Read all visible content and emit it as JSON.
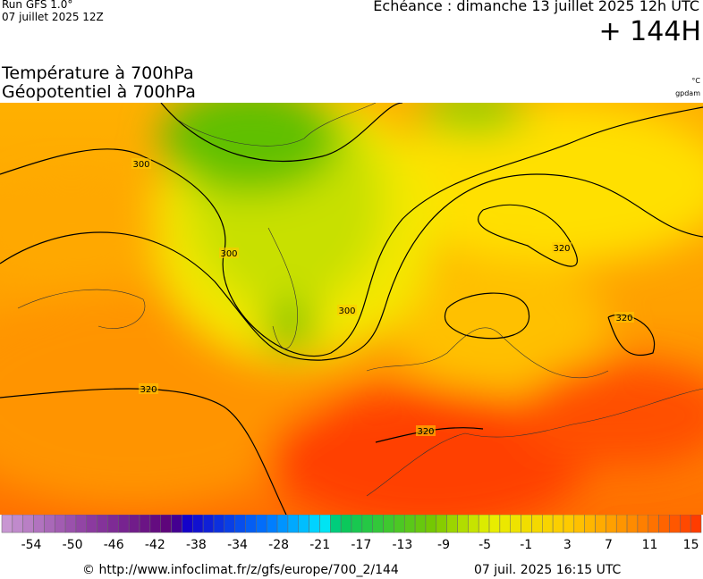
{
  "header": {
    "run": "Run GFS 1.0°",
    "init": "07 juillet 2025 12Z",
    "valid": "Echéance : dimanche 13 juillet 2025 12h UTC",
    "lead": "+ 144H"
  },
  "titles": {
    "line1": "Température à 700hPa",
    "line2": "Géopotentiel à 700hPa",
    "unit1": "°C",
    "unit2": "gpdam"
  },
  "contour_labels": [
    "300",
    "300",
    "300",
    "320",
    "320",
    "320",
    "320"
  ],
  "colorbar": {
    "ticks": [
      "-54",
      "-50",
      "-46",
      "-42",
      "-38",
      "-34",
      "-28",
      "-21",
      "-17",
      "-13",
      "-9",
      "-5",
      "-1",
      "3",
      "7",
      "11",
      "15"
    ]
  },
  "footer": {
    "url": "© http://www.infoclimat.fr/z/gfs/europe/700_2/144",
    "date": "07 juil. 2025 16:15 UTC"
  }
}
